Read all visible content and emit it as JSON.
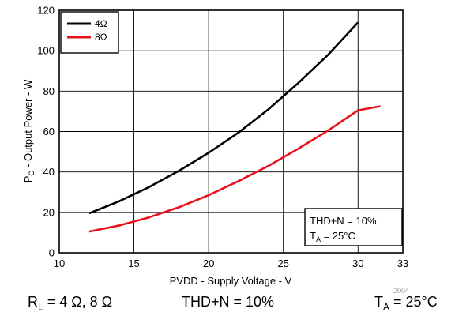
{
  "chart_data": {
    "type": "line",
    "xlabel": "PVDD - Supply Voltage - V",
    "ylabel_main": "P",
    "ylabel_sub": "O",
    "ylabel_rest": " - Output Power - W",
    "xlim": [
      10,
      33
    ],
    "ylim": [
      0,
      120
    ],
    "x_ticks": [
      10,
      15,
      20,
      25,
      30,
      33
    ],
    "y_ticks": [
      0,
      20,
      40,
      60,
      80,
      100,
      120
    ],
    "grid": true,
    "legend_position": "top-left",
    "series": [
      {
        "name": "4Ω",
        "color": "#000000",
        "points": [
          [
            12,
            19.5
          ],
          [
            14,
            25.5
          ],
          [
            16,
            32.5
          ],
          [
            18,
            40.5
          ],
          [
            20,
            49.5
          ],
          [
            22,
            59.5
          ],
          [
            24,
            71
          ],
          [
            26,
            84
          ],
          [
            28,
            98
          ],
          [
            30,
            114
          ]
        ]
      },
      {
        "name": "8Ω",
        "color": "#e8101a",
        "points": [
          [
            12,
            10.5
          ],
          [
            14,
            13.5
          ],
          [
            16,
            17.5
          ],
          [
            18,
            22.5
          ],
          [
            20,
            28.5
          ],
          [
            22,
            35.5
          ],
          [
            24,
            43
          ],
          [
            26,
            51.5
          ],
          [
            28,
            60.5
          ],
          [
            30,
            70.5
          ],
          [
            31.5,
            72.5
          ]
        ]
      }
    ],
    "annotation": {
      "line1": "THD+N = 10%",
      "line2_main": "T",
      "line2_sub": "A",
      "line2_rest": " = 25°C"
    },
    "figure_code": "D004"
  },
  "caption": {
    "load_main": "R",
    "load_sub": "L",
    "load_rest": " = 4 Ω, 8 Ω",
    "thd": "THD+N = 10%",
    "temp_main": "T",
    "temp_sub": "A",
    "temp_rest": " = 25°C"
  }
}
